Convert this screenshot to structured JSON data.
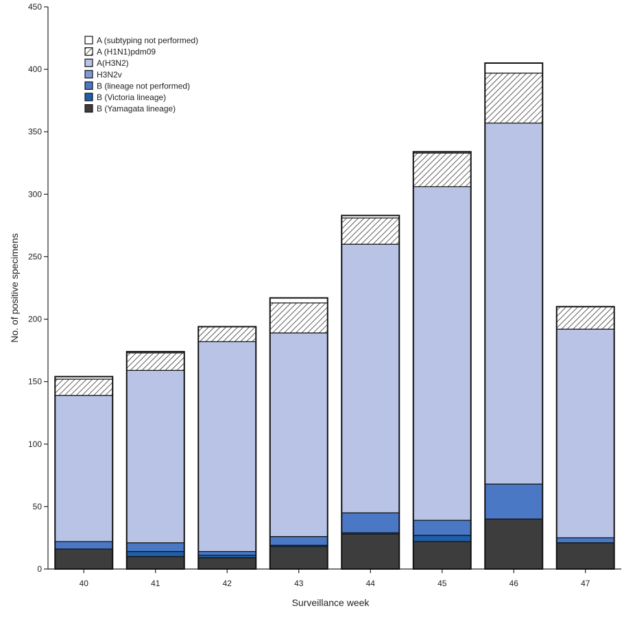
{
  "chart_data": {
    "type": "bar",
    "stacked": true,
    "xlabel": "Surveillance week",
    "ylabel": "No. of positive specimens",
    "ylim": [
      0,
      450
    ],
    "yticks": [
      0,
      50,
      100,
      150,
      200,
      250,
      300,
      350,
      400,
      450
    ],
    "grid": false,
    "legend_position": "top-left",
    "categories": [
      "40",
      "41",
      "42",
      "43",
      "44",
      "45",
      "46",
      "47"
    ],
    "series": [
      {
        "name": "B (Yamagata lineage)",
        "color": "#3d3d3d",
        "pattern": "solid",
        "values": [
          16,
          10,
          9,
          18,
          28,
          22,
          40,
          21
        ]
      },
      {
        "name": "B (Victoria lineage)",
        "color": "#1f5ea8",
        "pattern": "solid",
        "values": [
          0,
          4,
          2,
          1,
          1,
          5,
          0,
          0
        ]
      },
      {
        "name": "B (lineage not performed)",
        "color": "#4a78c5",
        "pattern": "solid",
        "values": [
          6,
          7,
          3,
          7,
          16,
          12,
          28,
          4
        ]
      },
      {
        "name": "H3N2v",
        "color": "#7f9ad6",
        "pattern": "solid",
        "values": [
          0,
          0,
          0,
          0,
          0,
          0,
          0,
          0
        ]
      },
      {
        "name": "A(H3N2)",
        "color": "#b8c3e6",
        "pattern": "solid",
        "values": [
          117,
          138,
          168,
          163,
          215,
          267,
          289,
          167
        ]
      },
      {
        "name": "A (H1N1)pdm09",
        "color": "#ffffff",
        "pattern": "hatch",
        "values": [
          13,
          14,
          12,
          24,
          21,
          27,
          40,
          18
        ]
      },
      {
        "name": "A (subtyping not performed)",
        "color": "#ffffff",
        "pattern": "solid",
        "values": [
          2,
          1,
          0,
          4,
          2,
          1,
          8,
          0
        ]
      }
    ]
  }
}
